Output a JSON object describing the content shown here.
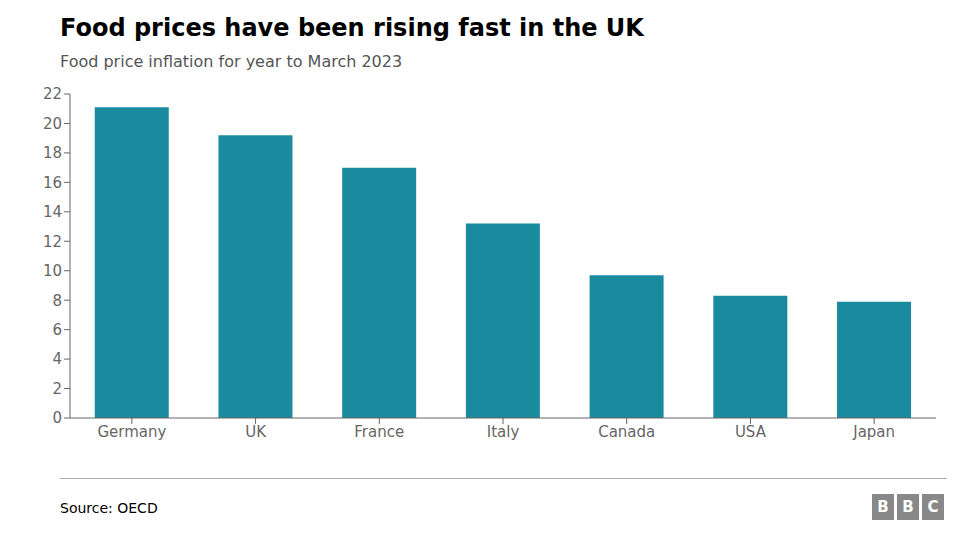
{
  "chart_data": {
    "type": "bar",
    "title": "Food prices have been rising fast in the UK",
    "subtitle": "Food price inflation for year to March 2023",
    "categories": [
      "Germany",
      "UK",
      "France",
      "Italy",
      "Canada",
      "USA",
      "Japan"
    ],
    "values": [
      21.1,
      19.2,
      17.0,
      13.2,
      9.7,
      8.3,
      7.9
    ],
    "color": "#1a8a9e",
    "ylim": [
      0,
      22
    ],
    "yticks": [
      0,
      2,
      4,
      6,
      8,
      10,
      12,
      14,
      16,
      18,
      20,
      22
    ],
    "grid": false,
    "annotations": [
      "Source: OECD",
      "BBC"
    ]
  }
}
